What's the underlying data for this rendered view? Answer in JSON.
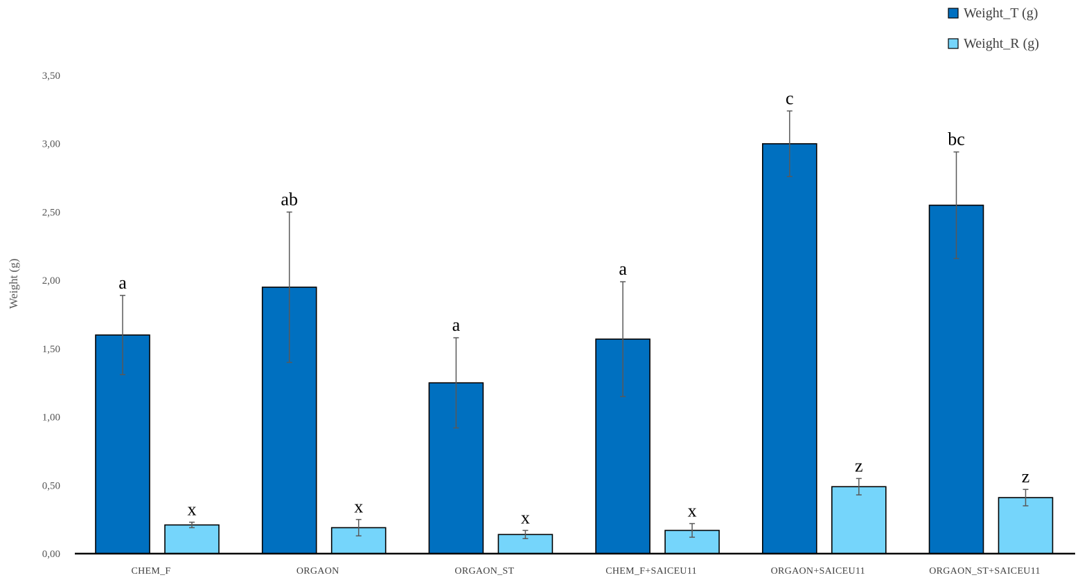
{
  "chart_data": {
    "type": "bar",
    "title": "",
    "xlabel": "",
    "ylabel": "Weight (g)",
    "ylim": [
      0,
      3.5
    ],
    "yticks": [
      "0,00",
      "0,50",
      "1,00",
      "1,50",
      "2,00",
      "2,50",
      "3,00",
      "3,50"
    ],
    "grid": false,
    "legend_position": "top-right",
    "categories": [
      "CHEM_F",
      "ORGAON",
      "ORGAON_ST",
      "CHEM_F+SAICEU11",
      "ORGAON+SAICEU11",
      "ORGAON_ST+SAICEU11"
    ],
    "series": [
      {
        "name": "Weight_T (g)",
        "color": "#0070c0",
        "values": [
          1.6,
          1.95,
          1.25,
          1.57,
          3.0,
          2.55
        ],
        "errors": [
          0.29,
          0.55,
          0.33,
          0.42,
          0.24,
          0.39
        ],
        "labels": [
          "a",
          "ab",
          "a",
          "a",
          "c",
          "bc"
        ]
      },
      {
        "name": "Weight_R (g)",
        "color": "#75d5fb",
        "values": [
          0.21,
          0.19,
          0.14,
          0.17,
          0.49,
          0.41
        ],
        "errors": [
          0.02,
          0.06,
          0.03,
          0.05,
          0.06,
          0.06
        ],
        "labels": [
          "x",
          "x",
          "x",
          "x",
          "z",
          "z"
        ]
      }
    ]
  }
}
